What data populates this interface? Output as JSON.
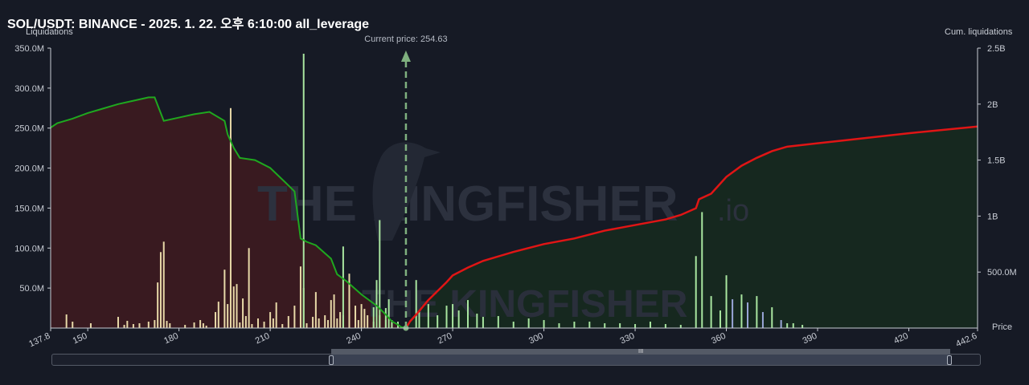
{
  "title": "SOL/USDT: BINANCE - 2025. 1. 22. 오후 6:10:00 all_leverage",
  "left_axis_label": "Liquidations",
  "right_axis_label": "Cum. liquidations",
  "x_axis_label": "Price",
  "current_price_label": "Current price: 254.63",
  "watermark": "THE KINGFISHER.IO",
  "colors": {
    "background": "#161a25",
    "long_cum_line": "#1fa81f",
    "short_cum_line": "#e01515",
    "long_area": "#3b1a20",
    "short_area": "#16291f",
    "long_bars": "#e8d9a8",
    "short_bars": "#a9e6a0",
    "bar_blue": "#9aa6d8",
    "current_price_line": "#7fb07f"
  },
  "scrollbar": {
    "grip_label": "III"
  },
  "chart_data": {
    "type": "bar",
    "x_label": "Price",
    "x_range": [
      137.8,
      442.6
    ],
    "x_ticks": [
      137.8,
      150,
      180,
      210,
      240,
      270,
      300,
      330,
      360,
      390,
      420,
      442.6
    ],
    "left_axis": {
      "label": "Liquidations",
      "range": [
        0,
        350000000
      ],
      "ticks": [
        "50.0M",
        "100.0M",
        "150.0M",
        "200.0M",
        "250.0M",
        "300.0M",
        "350.0M"
      ]
    },
    "right_axis": {
      "label": "Cum. liquidations",
      "range": [
        0,
        2500000000
      ],
      "ticks": [
        "500.0M",
        "1B",
        "1.5B",
        "2B",
        "2.5B"
      ]
    },
    "current_price": 254.63,
    "grid": false,
    "series": [
      {
        "name": "long_cumulative",
        "kind": "line",
        "axis": "right",
        "x": [
          137.8,
          140,
          145,
          150,
          155,
          160,
          165,
          170,
          172,
          175,
          180,
          185,
          190,
          195,
          196,
          198,
          200,
          205,
          210,
          215,
          218,
          220,
          222,
          225,
          230,
          232,
          235,
          240,
          245,
          248,
          250,
          252,
          253,
          254.63
        ],
        "y": [
          1790000000,
          1830000000,
          1870000000,
          1920000000,
          1960000000,
          2000000000,
          2030000000,
          2060000000,
          2060000000,
          1850000000,
          1880000000,
          1910000000,
          1930000000,
          1850000000,
          1730000000,
          1610000000,
          1520000000,
          1500000000,
          1430000000,
          1300000000,
          1220000000,
          800000000,
          770000000,
          740000000,
          620000000,
          480000000,
          420000000,
          300000000,
          200000000,
          120000000,
          60000000,
          30000000,
          10000000,
          0
        ]
      },
      {
        "name": "short_cumulative",
        "kind": "line",
        "axis": "right",
        "x": [
          254.63,
          256,
          258,
          262,
          268,
          270,
          275,
          280,
          290,
          300,
          310,
          320,
          330,
          340,
          345,
          350,
          351,
          355,
          360,
          365,
          370,
          375,
          380,
          390,
          400,
          420,
          442.6
        ],
        "y": [
          0,
          60000000,
          120000000,
          250000000,
          410000000,
          470000000,
          540000000,
          600000000,
          680000000,
          750000000,
          800000000,
          870000000,
          920000000,
          970000000,
          1010000000,
          1070000000,
          1150000000,
          1200000000,
          1350000000,
          1450000000,
          1520000000,
          1580000000,
          1620000000,
          1650000000,
          1680000000,
          1740000000,
          1800000000
        ]
      },
      {
        "name": "long_liquidations",
        "kind": "bar",
        "axis": "left",
        "x": [
          143,
          145,
          151,
          160,
          162,
          163,
          165,
          167,
          170,
          172,
          173,
          174,
          175,
          176,
          177,
          182,
          185,
          187,
          188,
          189,
          192,
          193,
          195,
          196,
          197,
          198,
          199,
          200,
          201,
          202,
          203,
          204,
          206,
          208,
          210,
          211,
          212,
          214,
          216,
          218,
          220,
          221,
          222,
          224,
          225,
          226,
          228,
          229,
          230,
          231,
          232,
          233,
          234,
          236,
          238,
          239,
          240,
          241,
          242,
          244,
          246,
          248,
          250
        ],
        "y": [
          17000000,
          8000000,
          6000000,
          14000000,
          4000000,
          9000000,
          5000000,
          6000000,
          8000000,
          10000000,
          57000000,
          95000000,
          108000000,
          9000000,
          6000000,
          4000000,
          7000000,
          10000000,
          6000000,
          3000000,
          20000000,
          33000000,
          73000000,
          30000000,
          275000000,
          52000000,
          55000000,
          7000000,
          37000000,
          15000000,
          100000000,
          5000000,
          12000000,
          8000000,
          20000000,
          12000000,
          32000000,
          5000000,
          15000000,
          28000000,
          77000000,
          50000000,
          6000000,
          14000000,
          45000000,
          12000000,
          16000000,
          10000000,
          35000000,
          42000000,
          12000000,
          20000000,
          16000000,
          68000000,
          28000000,
          10000000,
          30000000,
          24000000,
          16000000,
          8000000,
          16000000,
          10000000,
          6000000
        ]
      },
      {
        "name": "short_liquidations",
        "kind": "bar",
        "axis": "left",
        "x": [
          221,
          234,
          244,
          245,
          246,
          248,
          249,
          250,
          252,
          258,
          259,
          262,
          265,
          268,
          270,
          272,
          275,
          278,
          280,
          285,
          290,
          295,
          300,
          305,
          310,
          315,
          320,
          325,
          330,
          335,
          340,
          345,
          350,
          352,
          355,
          358,
          360,
          362,
          365,
          367,
          370,
          372,
          375,
          378,
          380,
          382,
          385
        ],
        "y": [
          343000000,
          102000000,
          26000000,
          60000000,
          135000000,
          25000000,
          36000000,
          10000000,
          8000000,
          60000000,
          20000000,
          30000000,
          16000000,
          28000000,
          30000000,
          22000000,
          35000000,
          18000000,
          14000000,
          15000000,
          8000000,
          12000000,
          10000000,
          6000000,
          8000000,
          8000000,
          6000000,
          6000000,
          5000000,
          8000000,
          5000000,
          4000000,
          90000000,
          145000000,
          40000000,
          22000000,
          66000000,
          36000000,
          42000000,
          32000000,
          40000000,
          20000000,
          26000000,
          10000000,
          6000000,
          6000000,
          4000000
        ]
      }
    ]
  }
}
